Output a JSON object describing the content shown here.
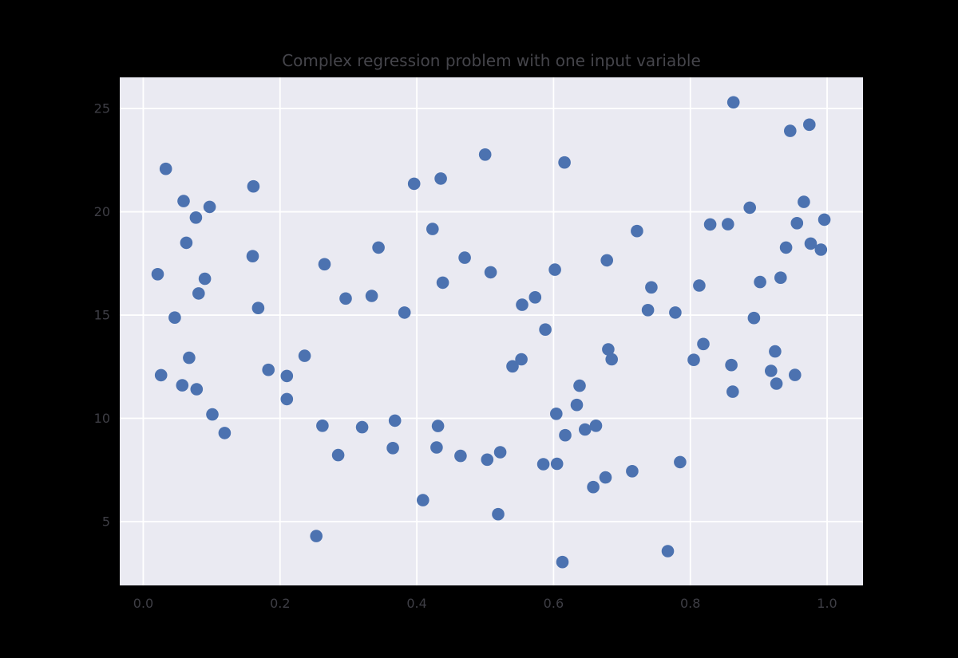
{
  "figure": {
    "background_color": "#000000"
  },
  "chart_data": {
    "type": "scatter",
    "title": "Complex regression problem with one input variable",
    "xlabel": "",
    "ylabel": "",
    "x_ticks": {
      "values": [
        0.0,
        0.2,
        0.4,
        0.6,
        0.8,
        1.0
      ],
      "labels": [
        "0.0",
        "0.2",
        "0.4",
        "0.6",
        "0.8",
        "1.0"
      ]
    },
    "y_ticks": {
      "values": [
        5,
        10,
        15,
        20,
        25
      ],
      "labels": [
        "5",
        "10",
        "15",
        "20",
        "25"
      ]
    },
    "xlim": [
      -0.0344,
      1.0525
    ],
    "ylim": [
      1.91,
      26.51
    ],
    "grid": true,
    "legend_position": "none",
    "style": {
      "plot_background": "#eaeaf2",
      "gridline_color": "#ffffff",
      "gridline_width": 1.8,
      "marker_color": "#4c72b0",
      "marker_radius_px": 7.8,
      "title_color": "#45454b",
      "tick_label_color": "#3e3e45"
    },
    "points": [
      [
        0.033,
        22.08
      ],
      [
        0.161,
        21.23
      ],
      [
        0.059,
        20.52
      ],
      [
        0.097,
        20.24
      ],
      [
        0.077,
        19.72
      ],
      [
        0.063,
        18.5
      ],
      [
        0.16,
        17.85
      ],
      [
        0.021,
        16.98
      ],
      [
        0.265,
        17.46
      ],
      [
        0.09,
        16.76
      ],
      [
        0.081,
        16.05
      ],
      [
        0.168,
        15.34
      ],
      [
        0.296,
        15.8
      ],
      [
        0.046,
        14.88
      ],
      [
        0.5,
        22.77
      ],
      [
        0.616,
        22.39
      ],
      [
        0.435,
        21.61
      ],
      [
        0.396,
        21.36
      ],
      [
        0.423,
        19.17
      ],
      [
        0.344,
        18.27
      ],
      [
        0.47,
        17.78
      ],
      [
        0.508,
        17.07
      ],
      [
        0.438,
        16.57
      ],
      [
        0.602,
        17.2
      ],
      [
        0.678,
        17.65
      ],
      [
        0.334,
        15.93
      ],
      [
        0.382,
        15.12
      ],
      [
        0.554,
        15.5
      ],
      [
        0.573,
        15.86
      ],
      [
        0.588,
        14.3
      ],
      [
        0.863,
        25.3
      ],
      [
        0.946,
        23.92
      ],
      [
        0.974,
        24.22
      ],
      [
        0.966,
        20.48
      ],
      [
        0.887,
        20.2
      ],
      [
        0.829,
        19.39
      ],
      [
        0.855,
        19.4
      ],
      [
        0.956,
        19.45
      ],
      [
        0.996,
        19.62
      ],
      [
        0.722,
        19.07
      ],
      [
        0.94,
        18.27
      ],
      [
        0.976,
        18.46
      ],
      [
        0.991,
        18.17
      ],
      [
        0.902,
        16.6
      ],
      [
        0.932,
        16.81
      ],
      [
        0.743,
        16.34
      ],
      [
        0.813,
        16.43
      ],
      [
        0.738,
        15.24
      ],
      [
        0.778,
        15.12
      ],
      [
        0.893,
        14.86
      ],
      [
        0.067,
        12.93
      ],
      [
        0.026,
        12.09
      ],
      [
        0.057,
        11.6
      ],
      [
        0.078,
        11.41
      ],
      [
        0.101,
        10.19
      ],
      [
        0.119,
        9.29
      ],
      [
        0.183,
        12.35
      ],
      [
        0.21,
        12.05
      ],
      [
        0.236,
        13.03
      ],
      [
        0.21,
        10.93
      ],
      [
        0.262,
        9.64
      ],
      [
        0.32,
        9.57
      ],
      [
        0.285,
        8.22
      ],
      [
        0.253,
        4.3
      ],
      [
        0.54,
        12.52
      ],
      [
        0.553,
        12.86
      ],
      [
        0.68,
        13.34
      ],
      [
        0.685,
        12.86
      ],
      [
        0.638,
        11.58
      ],
      [
        0.634,
        10.65
      ],
      [
        0.604,
        10.22
      ],
      [
        0.368,
        9.89
      ],
      [
        0.431,
        9.63
      ],
      [
        0.365,
        8.56
      ],
      [
        0.429,
        8.59
      ],
      [
        0.464,
        8.18
      ],
      [
        0.503,
        8.0
      ],
      [
        0.522,
        8.36
      ],
      [
        0.585,
        7.78
      ],
      [
        0.605,
        7.8
      ],
      [
        0.617,
        9.18
      ],
      [
        0.646,
        9.46
      ],
      [
        0.662,
        9.64
      ],
      [
        0.676,
        7.14
      ],
      [
        0.658,
        6.67
      ],
      [
        0.409,
        6.04
      ],
      [
        0.519,
        5.36
      ],
      [
        0.613,
        3.04
      ],
      [
        0.767,
        3.57
      ],
      [
        0.785,
        7.88
      ],
      [
        0.715,
        7.44
      ],
      [
        0.819,
        13.6
      ],
      [
        0.805,
        12.83
      ],
      [
        0.86,
        12.58
      ],
      [
        0.924,
        13.24
      ],
      [
        0.918,
        12.3
      ],
      [
        0.926,
        11.68
      ],
      [
        0.953,
        12.1
      ],
      [
        0.862,
        11.29
      ]
    ]
  }
}
